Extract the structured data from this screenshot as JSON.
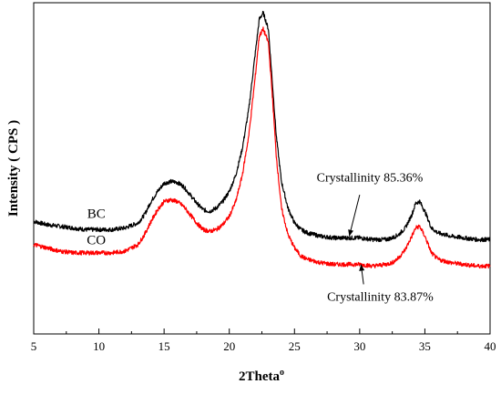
{
  "chart_data": {
    "type": "line",
    "title": "",
    "xlabel": "2Theta",
    "xlabel_suffix": "o",
    "ylabel": "Intensity ( CPS )",
    "xlim": [
      5,
      40
    ],
    "ylim": [
      0,
      100
    ],
    "x_ticks": [
      5,
      10,
      15,
      20,
      25,
      30,
      35,
      40
    ],
    "y_ticks_shown": false,
    "grid": false,
    "legend": "none",
    "series": [
      {
        "name": "BC",
        "color": "#000000",
        "x": [
          5,
          6,
          7,
          8,
          9,
          10,
          11,
          12,
          13,
          13.5,
          14,
          14.5,
          15,
          15.5,
          16,
          16.5,
          17,
          17.5,
          18,
          18.5,
          19,
          19.5,
          20,
          20.5,
          21,
          21.5,
          22,
          22.3,
          22.6,
          23,
          23.3,
          23.6,
          24,
          24.5,
          25,
          25.5,
          26,
          27,
          28,
          29,
          30,
          31,
          32,
          32.5,
          33,
          33.5,
          34,
          34.3,
          34.6,
          35,
          35.5,
          36,
          37,
          38,
          39,
          40
        ],
        "values": [
          34,
          33,
          32.5,
          32,
          31.5,
          31.5,
          31.5,
          32,
          33.5,
          36,
          40,
          43,
          45.5,
          46,
          45.8,
          44.5,
          42,
          39.5,
          37.5,
          37,
          38,
          40,
          43,
          48,
          56,
          68,
          85,
          95,
          97,
          92,
          76,
          60,
          46,
          38,
          33.5,
          31.5,
          30.5,
          29.5,
          29,
          29,
          29,
          28.5,
          28.5,
          29,
          30,
          32,
          36,
          39.5,
          40,
          37,
          32,
          30.5,
          29.5,
          29,
          28.5,
          28.5
        ]
      },
      {
        "name": "CO",
        "color": "#ff0000",
        "x": [
          5,
          6,
          7,
          8,
          9,
          10,
          11,
          12,
          13,
          13.5,
          14,
          14.5,
          15,
          15.5,
          16,
          16.5,
          17,
          17.5,
          18,
          18.5,
          19,
          19.5,
          20,
          20.5,
          21,
          21.5,
          22,
          22.3,
          22.6,
          23,
          23.3,
          23.6,
          24,
          24.5,
          25,
          25.5,
          26,
          27,
          28,
          29,
          30,
          31,
          32,
          32.5,
          33,
          33.5,
          34,
          34.3,
          34.6,
          35,
          35.5,
          36,
          37,
          38,
          39,
          40
        ],
        "values": [
          27,
          26,
          25,
          24.5,
          24.5,
          24.5,
          24.5,
          25,
          27,
          30,
          34,
          37.5,
          40,
          40.5,
          40,
          38.5,
          36,
          33.5,
          31.5,
          31,
          31.5,
          33,
          35.5,
          40,
          48,
          60,
          78,
          90,
          92,
          88,
          72,
          54,
          38,
          30,
          26,
          23.5,
          22.5,
          21.5,
          21,
          21,
          21,
          20.5,
          21,
          21.5,
          23,
          25.5,
          29.5,
          32,
          32.5,
          29.5,
          24.5,
          22.5,
          21.5,
          21,
          20.5,
          20.5
        ]
      }
    ],
    "series_labels": [
      {
        "text": "BC",
        "x": 9.8,
        "y": 35
      },
      {
        "text": "CO",
        "x": 9.8,
        "y": 27
      }
    ],
    "annotations": [
      {
        "text": "Crystallinity 85.36%",
        "text_x": 26.7,
        "text_y": 46,
        "arrow_from": [
          30,
          42
        ],
        "arrow_to": [
          29.2,
          29.5
        ]
      },
      {
        "text": "Crystallinity 83.87%",
        "text_x": 27.5,
        "text_y": 10,
        "arrow_from": [
          30.3,
          15
        ],
        "arrow_to": [
          30.1,
          21
        ]
      }
    ]
  }
}
